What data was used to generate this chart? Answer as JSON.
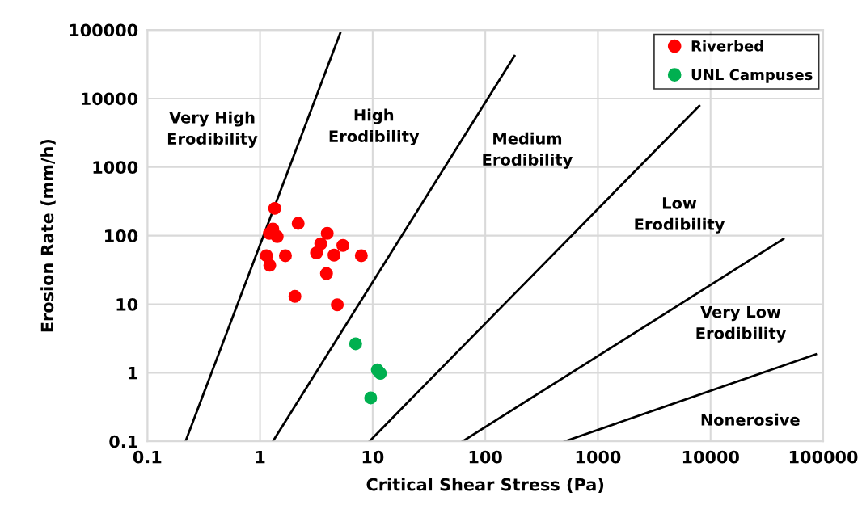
{
  "chart_data": {
    "type": "scatter",
    "xlabel": "Critical Shear Stress (Pa)",
    "ylabel": "Erosion Rate (mm/h)",
    "log": "xy",
    "xlim": [
      0.1,
      100000
    ],
    "ylim": [
      0.1,
      100000
    ],
    "xticks": [
      0.1,
      1,
      10,
      100,
      1000,
      10000,
      100000
    ],
    "yticks": [
      0.1,
      1,
      10,
      100,
      1000,
      10000,
      100000
    ],
    "grid": true,
    "legend": "top right",
    "series": [
      {
        "name": "Riverbed",
        "marker": "circle",
        "color": "#ff0000",
        "x": [
          1.35,
          2.18,
          1.3,
          1.21,
          1.42,
          3.95,
          3.46,
          5.44,
          3.17,
          4.54,
          7.93,
          1.14,
          1.68,
          1.22,
          3.89,
          2.04,
          4.85
        ],
        "values": [
          250,
          151,
          125,
          108,
          97,
          108,
          76,
          72,
          56,
          52,
          51,
          51,
          51,
          37,
          28,
          13,
          9.8
        ]
      },
      {
        "name": "UNL Campuses",
        "marker": "circle",
        "color": "#00b050",
        "x": [
          7.06,
          11.0,
          11.7,
          9.6
        ],
        "values": [
          2.65,
          1.1,
          0.98,
          0.43
        ]
      },
      {
        "type": "line",
        "color": "#000000",
        "x": [
          0.218,
          5.15
        ],
        "values": [
          0.1,
          89700
        ]
      },
      {
        "type": "line",
        "color": "#000000",
        "x": [
          1.3,
          181.6
        ],
        "values": [
          0.1,
          42000
        ]
      },
      {
        "type": "line",
        "color": "#000000",
        "x": [
          9.36,
          7940
        ],
        "values": [
          0.1,
          7830
        ]
      },
      {
        "type": "line",
        "color": "#000000",
        "x": [
          62.9,
          44400
        ],
        "values": [
          0.1,
          89.7
        ]
      },
      {
        "type": "line",
        "color": "#000000",
        "x": [
          507,
          86100
        ],
        "values": [
          0.1,
          1.86
        ]
      }
    ],
    "annotations": [
      "Very High\nErodibility",
      "High\nErodibility",
      "Medium\nErodibility",
      "Low\nErodibility",
      "Very Low\nErodibility",
      "Nonerosive"
    ]
  }
}
